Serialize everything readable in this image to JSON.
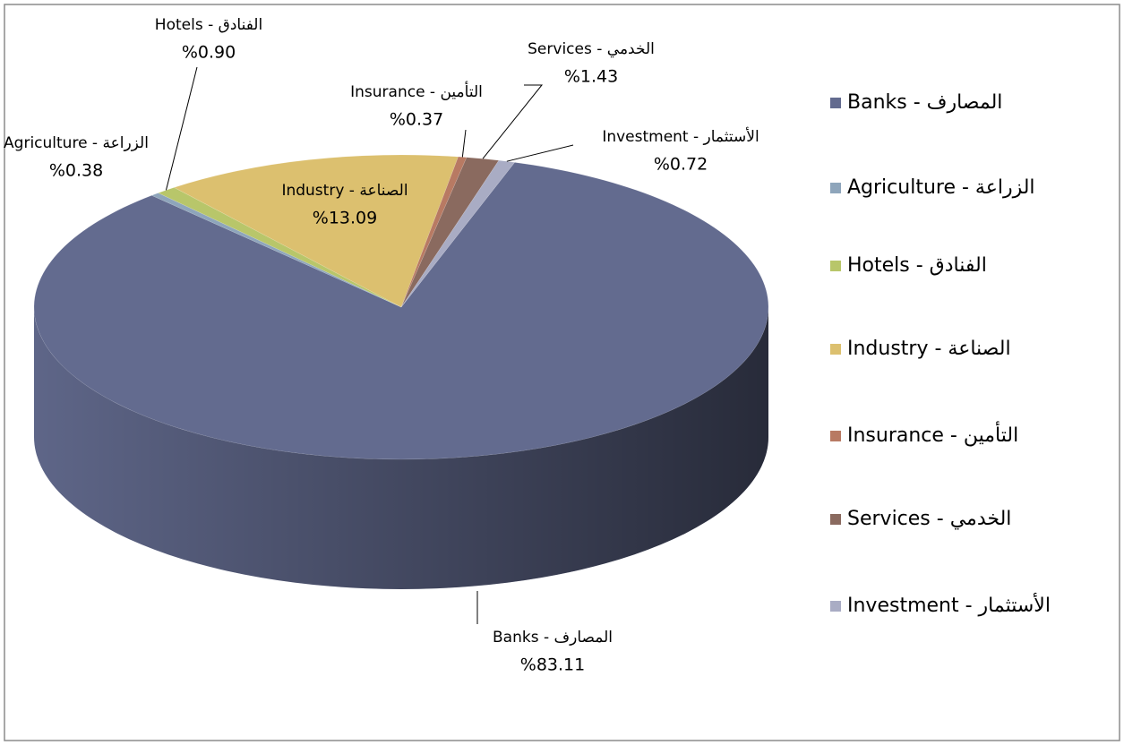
{
  "chart_data": {
    "type": "pie",
    "categories": [
      "Banks - المصارف",
      "Agriculture - الزراعة",
      "Hotels - الفنادق",
      "Industry - الصناعة",
      "Insurance - التأمين",
      "Services - الخدمي",
      "Investment - الأستثمار"
    ],
    "values": [
      83.11,
      0.38,
      0.9,
      13.09,
      0.37,
      1.43,
      0.72
    ],
    "value_labels": [
      "%83.11",
      "%0.38",
      "%0.90",
      "%13.09",
      "%0.37",
      "%1.43",
      "%0.72"
    ],
    "colors": [
      "#636b8f",
      "#8ea5bb",
      "#b8c66a",
      "#dcc06f",
      "#b87a63",
      "#8a6a5f",
      "#a9acc4"
    ],
    "legend": "right"
  }
}
